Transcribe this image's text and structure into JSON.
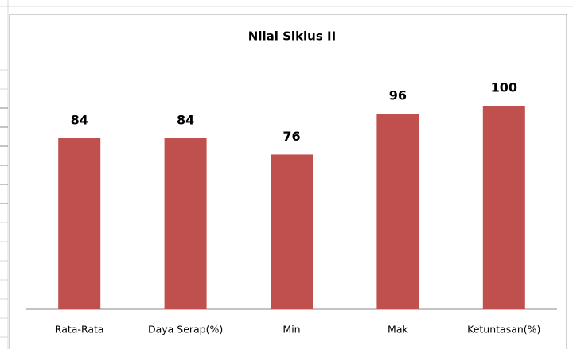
{
  "chart_data": {
    "type": "bar",
    "title": "Nilai Siklus II",
    "categories": [
      "Rata-Rata",
      "Daya Serap(%)",
      "Min",
      "Mak",
      "Ketuntasan(%)"
    ],
    "values": [
      84,
      84,
      76,
      96,
      100
    ],
    "color": "#c0504d"
  }
}
